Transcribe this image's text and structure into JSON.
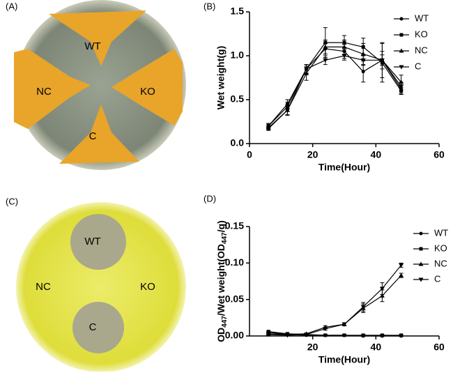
{
  "images": [
    {
      "panel": "(A)",
      "labels": [
        "WT",
        "KO",
        "NC",
        "C"
      ]
    },
    {
      "panel": "(C)",
      "labels": [
        "WT",
        "KO",
        "NC",
        "C"
      ]
    }
  ],
  "chart_data": [
    {
      "type": "line",
      "panel": "(B)",
      "xlabel": "Time(Hour)",
      "ylabel": "Wet weight(g)",
      "x": [
        6,
        12,
        18,
        24,
        30,
        36,
        42,
        48
      ],
      "xlim": [
        0,
        60
      ],
      "xticks": [
        0,
        20,
        40,
        60
      ],
      "ylim": [
        0,
        1.5
      ],
      "yticks": [
        {
          "value": 0,
          "label": "0.0"
        },
        0.5,
        {
          "value": 1,
          "label": "1.0"
        },
        1.5
      ],
      "legend": "upper right",
      "series": [
        {
          "name": "WT",
          "color": "#000000",
          "marker": "circle",
          "values": [
            0.2,
            0.45,
            0.85,
            1.08,
            1.05,
            0.82,
            0.95,
            0.62
          ],
          "errors": [
            0.03,
            0.05,
            0.05,
            0.06,
            0.08,
            0.12,
            0.06,
            0.05
          ]
        },
        {
          "name": "KO",
          "color": "#000000",
          "marker": "square",
          "values": [
            0.2,
            0.42,
            0.85,
            1.15,
            1.15,
            1.1,
            0.92,
            0.6
          ],
          "errors": [
            0.02,
            0.05,
            0.05,
            0.17,
            0.08,
            0.1,
            0.22,
            0.04
          ]
        },
        {
          "name": "NC",
          "color": "#000000",
          "marker": "triangle-up",
          "values": [
            0.18,
            0.38,
            0.8,
            1.1,
            1.1,
            1.02,
            0.95,
            0.7
          ],
          "errors": [
            0.02,
            0.06,
            0.08,
            0.08,
            0.08,
            0.12,
            0.2,
            0.08
          ]
        },
        {
          "name": "C",
          "color": "#000000",
          "marker": "triangle-down",
          "values": [
            0.17,
            0.38,
            0.85,
            0.95,
            1.0,
            0.95,
            0.95,
            0.65
          ],
          "errors": [
            0.02,
            0.05,
            0.05,
            0.05,
            0.05,
            0.06,
            0.1,
            0.05
          ]
        }
      ]
    },
    {
      "type": "line",
      "panel": "(D)",
      "xlabel": "Time(Hour)",
      "ylabel": [
        "OD",
        "447",
        "/Wet weight(OD",
        "447",
        "/g)"
      ],
      "x": [
        6,
        12,
        18,
        24,
        30,
        36,
        42,
        48
      ],
      "xlim": [
        0,
        60
      ],
      "xticks": [
        20,
        40,
        60
      ],
      "ylim": [
        0,
        0.15
      ],
      "yticks": [
        {
          "value": 0,
          "label": "0.00"
        },
        0.05,
        {
          "value": 0.1,
          "label": "0.10"
        },
        0.15
      ],
      "legend": "upper right",
      "series": [
        {
          "name": "WT",
          "color": "#000000",
          "marker": "circle",
          "values": [
            0.005,
            0.002,
            0.001,
            0.001,
            0.001,
            0.0,
            0.0,
            0.0
          ],
          "errors": [
            0.001,
            0.001,
            0.001,
            0.001,
            0.001,
            0.001,
            0.001,
            0.001
          ]
        },
        {
          "name": "KO",
          "color": "#000000",
          "marker": "square",
          "values": [
            0.006,
            0.003,
            0.002,
            0.001,
            0.001,
            0.001,
            0.001,
            0.001
          ],
          "errors": [
            0.001,
            0.001,
            0.001,
            0.001,
            0.001,
            0.001,
            0.001,
            0.001
          ]
        },
        {
          "name": "NC",
          "color": "#000000",
          "marker": "triangle-up",
          "values": [
            0.003,
            0.002,
            0.003,
            0.012,
            0.016,
            0.038,
            0.055,
            0.083
          ],
          "errors": [
            0.001,
            0.001,
            0.001,
            0.002,
            0.002,
            0.006,
            0.008,
            0.003
          ]
        },
        {
          "name": "C",
          "color": "#000000",
          "marker": "triangle-down",
          "values": [
            0.002,
            0.001,
            0.002,
            0.01,
            0.016,
            0.04,
            0.065,
            0.097
          ],
          "errors": [
            0.001,
            0.001,
            0.001,
            0.002,
            0.002,
            0.006,
            0.008,
            0.003
          ]
        }
      ]
    }
  ]
}
